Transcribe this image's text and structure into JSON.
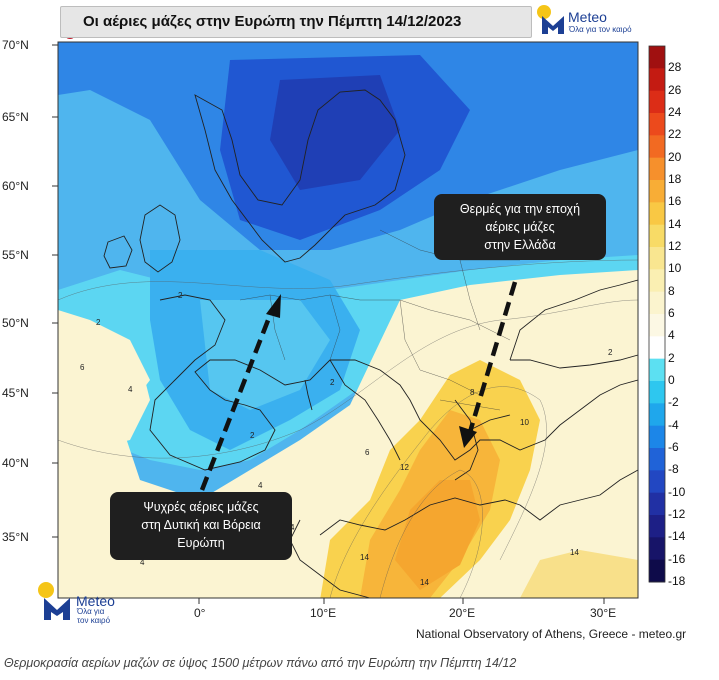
{
  "title": "Οι αέριες μάζες στην Ευρώπη την  Πέμπτη 14/12/2023",
  "logo": {
    "name": "Meteo",
    "tagline_line1": "Όλα για",
    "tagline_line2": "τον καιρό",
    "brand_color": "#1c3f94",
    "sun_color": "#f5c518"
  },
  "map_axes": {
    "lat_labels": [
      "70°N",
      "65°N",
      "60°N",
      "55°N",
      "50°N",
      "45°N",
      "40°N",
      "35°N"
    ],
    "lon_labels": [
      "0°",
      "10°E",
      "20°E",
      "30°E"
    ]
  },
  "colorbar": {
    "labels": [
      "28",
      "26",
      "24",
      "22",
      "20",
      "18",
      "16",
      "14",
      "12",
      "10",
      "8",
      "6",
      "4",
      "2",
      "0",
      "-2",
      "-4",
      "-6",
      "-8",
      "-10",
      "-12",
      "-14",
      "-16",
      "-18"
    ],
    "colors": [
      "#a01010",
      "#c41b12",
      "#dc2d17",
      "#ec4a1c",
      "#f26a22",
      "#f6902c",
      "#f8ad36",
      "#f9c844",
      "#f8db66",
      "#f9e690",
      "#faefb2",
      "#fbf4ce",
      "#fcf8e4",
      "#ffffff",
      "#5ce0f2",
      "#2ec7ef",
      "#1fa7ec",
      "#1c86e8",
      "#2063d8",
      "#2247c2",
      "#2130a4",
      "#1d1f86",
      "#171468",
      "#0e0b4a"
    ]
  },
  "callouts": {
    "warm": {
      "line1": "Θερμές για την εποχή",
      "line2": "αέριες μάζες",
      "line3": "στην Ελλάδα"
    },
    "cold": {
      "line1": "Ψυχρές αέριες μάζες",
      "line2": "στη Δυτική και Βόρεια",
      "line3": "Ευρώπη"
    }
  },
  "contour_labels": [
    "2",
    "2",
    "2",
    "2",
    "4",
    "6",
    "4",
    "6",
    "8",
    "10",
    "12",
    "14",
    "14",
    "14",
    "4",
    "4",
    "2"
  ],
  "credit": "National Observatory of Athens, Greece - meteo.gr",
  "caption": "Θερμοκρασία αερίων μαζών σε ύψος 1500 μέτρων πάνω από την Ευρώπη την Πέμπτη 14/12",
  "colors": {
    "thermometer": "#c0182a",
    "callout_bg": "#1f1f1f",
    "arrow": "#111111"
  }
}
